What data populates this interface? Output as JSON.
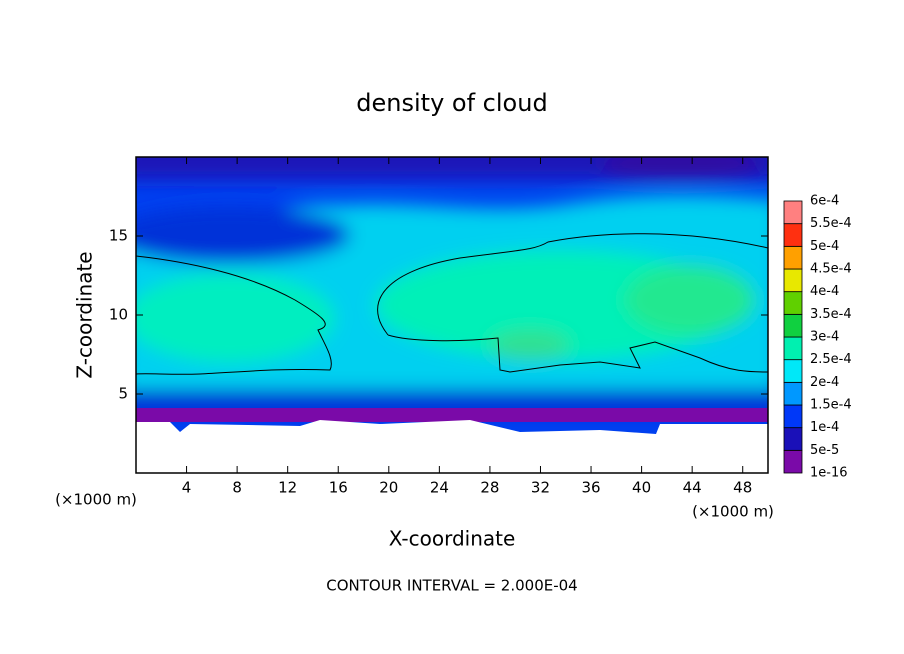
{
  "chart_data": {
    "type": "contour",
    "title": "density of cloud",
    "xlabel": "X-coordinate",
    "ylabel": "Z-coordinate",
    "x_unit": "(×1000 m)",
    "annotation": "CONTOUR INTERVAL = 2.000E-04",
    "xlim": [
      0,
      50
    ],
    "xticks": [
      4,
      8,
      12,
      16,
      20,
      24,
      28,
      32,
      36,
      40,
      44,
      48
    ],
    "ylim": [
      0,
      20
    ],
    "yticks": [
      5,
      10,
      15
    ],
    "colorbar": {
      "levels": [
        {
          "value": 1e-16,
          "label": "1e-16"
        },
        {
          "value": 5e-05,
          "label": "5e-5"
        },
        {
          "value": 0.0001,
          "label": "1e-4"
        },
        {
          "value": 0.00015,
          "label": "1.5e-4"
        },
        {
          "value": 0.0002,
          "label": "2e-4"
        },
        {
          "value": 0.00025,
          "label": "2.5e-4"
        },
        {
          "value": 0.0003,
          "label": "3e-4"
        },
        {
          "value": 0.00035,
          "label": "3.5e-4"
        },
        {
          "value": 0.0004,
          "label": "4e-4"
        },
        {
          "value": 0.00045,
          "label": "4.5e-4"
        },
        {
          "value": 0.0005,
          "label": "5e-4"
        },
        {
          "value": 0.00055,
          "label": "5.5e-4"
        },
        {
          "value": 0.0006,
          "label": "6e-4"
        }
      ],
      "colors": [
        "#7a0aa8",
        "#1a10b8",
        "#0038f8",
        "#0098ff",
        "#00e8f8",
        "#00f0b0",
        "#10d040",
        "#60d000",
        "#e8e800",
        "#ffa000",
        "#ff3010",
        "#ff8080"
      ]
    }
  }
}
